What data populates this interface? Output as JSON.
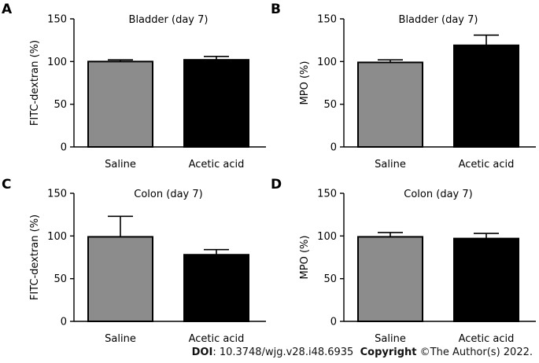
{
  "chart_data": [
    {
      "type": "bar",
      "panel": "A",
      "title": "Bladder (day 7)",
      "ylabel": "FITC-dextran (%)",
      "categories": [
        "Saline",
        "Acetic acid"
      ],
      "values": [
        100,
        102
      ],
      "errors": [
        2,
        4
      ],
      "ylim": [
        0,
        150
      ],
      "yticks": [
        "0",
        "50",
        "100",
        "150"
      ],
      "bar_colors": [
        "#8c8c8c",
        "#000000"
      ]
    },
    {
      "type": "bar",
      "panel": "B",
      "title": "Bladder (day 7)",
      "ylabel": "MPO (%)",
      "categories": [
        "Saline",
        "Acetic acid"
      ],
      "values": [
        99,
        119
      ],
      "errors": [
        3,
        12
      ],
      "ylim": [
        0,
        150
      ],
      "yticks": [
        "0",
        "50",
        "100",
        "150"
      ],
      "bar_colors": [
        "#8c8c8c",
        "#000000"
      ]
    },
    {
      "type": "bar",
      "panel": "C",
      "title": "Colon (day 7)",
      "ylabel": "FITC-dextran (%)",
      "categories": [
        "Saline",
        "Acetic acid"
      ],
      "values": [
        99,
        78
      ],
      "errors": [
        24,
        6
      ],
      "ylim": [
        0,
        150
      ],
      "yticks": [
        "0",
        "50",
        "100",
        "150"
      ],
      "bar_colors": [
        "#8c8c8c",
        "#000000"
      ]
    },
    {
      "type": "bar",
      "panel": "D",
      "title": "Colon (day 7)",
      "ylabel": "MPO (%)",
      "categories": [
        "Saline",
        "Acetic acid"
      ],
      "values": [
        99,
        97
      ],
      "errors": [
        5,
        6
      ],
      "ylim": [
        0,
        150
      ],
      "yticks": [
        "0",
        "50",
        "100",
        "150"
      ],
      "bar_colors": [
        "#8c8c8c",
        "#000000"
      ]
    }
  ],
  "footer": {
    "doi_label": "DOI",
    "doi_text": ": 10.3748/wjg.v28.i48.6935",
    "copyright_label": "Copyright",
    "copyright_text": " ©The Author(s) 2022."
  }
}
